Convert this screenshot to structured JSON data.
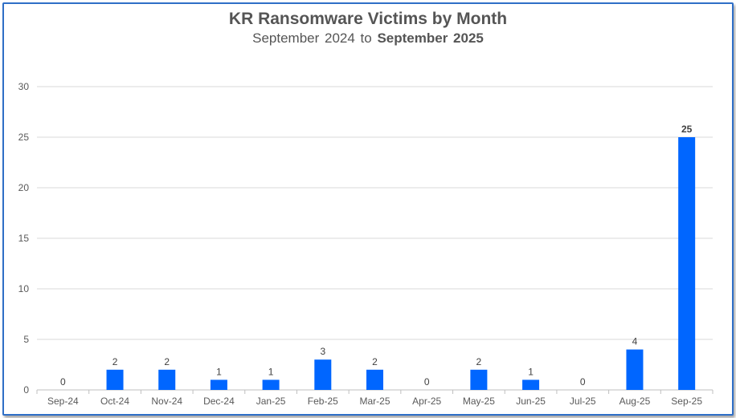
{
  "chart_data": {
    "type": "bar",
    "title": "KR Ransomware Victims by Month",
    "subtitle": {
      "part1": "September 2024",
      "connector": "to",
      "part2": "September 2025"
    },
    "categories": [
      "Sep-24",
      "Oct-24",
      "Nov-24",
      "Dec-24",
      "Jan-25",
      "Feb-25",
      "Mar-25",
      "Apr-25",
      "May-25",
      "Jun-25",
      "Jul-25",
      "Aug-25",
      "Sep-25"
    ],
    "values": [
      0,
      2,
      2,
      1,
      1,
      3,
      2,
      0,
      2,
      1,
      0,
      4,
      25
    ],
    "ylim": [
      0,
      30
    ],
    "yticks": [
      0,
      5,
      10,
      15,
      20,
      25,
      30
    ],
    "xlabel": "",
    "ylabel": "",
    "grid": true,
    "bar_color": "#0066ff",
    "highlight_last_label_bold": true
  }
}
